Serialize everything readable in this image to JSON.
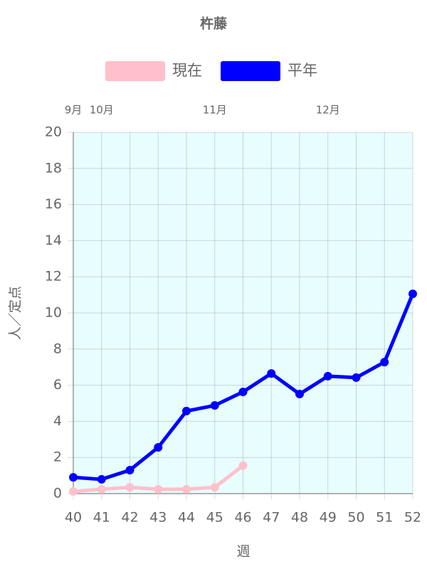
{
  "chart_data": {
    "type": "line",
    "title": "杵藤",
    "x_label": "週",
    "y_label": "人／定点",
    "x": [
      40,
      41,
      42,
      43,
      44,
      45,
      46,
      47,
      48,
      49,
      50,
      51,
      52
    ],
    "xlim": [
      40,
      52
    ],
    "xticks": [
      40,
      41,
      42,
      43,
      44,
      45,
      46,
      47,
      48,
      49,
      50,
      51,
      52
    ],
    "x2ticks": [
      {
        "value": 40,
        "label": "9月"
      },
      {
        "value": 41,
        "label": "10月"
      },
      {
        "value": 45,
        "label": "11月"
      },
      {
        "value": 49,
        "label": "12月"
      }
    ],
    "ylim": [
      0,
      20
    ],
    "yticks": [
      0,
      2,
      4,
      6,
      8,
      10,
      12,
      14,
      16,
      18,
      20
    ],
    "grid": true,
    "plot_background": "#e8fdfe",
    "legend": "top",
    "series": [
      {
        "name": "現在",
        "color": "#ffc0cb",
        "values": [
          0.12,
          0.24,
          0.35,
          0.24,
          0.24,
          0.35,
          1.55,
          null,
          null,
          null,
          null,
          null,
          null
        ]
      },
      {
        "name": "平年",
        "color": "#0000ff",
        "values": [
          0.9,
          0.79,
          1.3,
          2.56,
          4.57,
          4.88,
          5.63,
          6.65,
          5.51,
          6.5,
          6.42,
          7.28,
          11.06
        ]
      }
    ]
  }
}
